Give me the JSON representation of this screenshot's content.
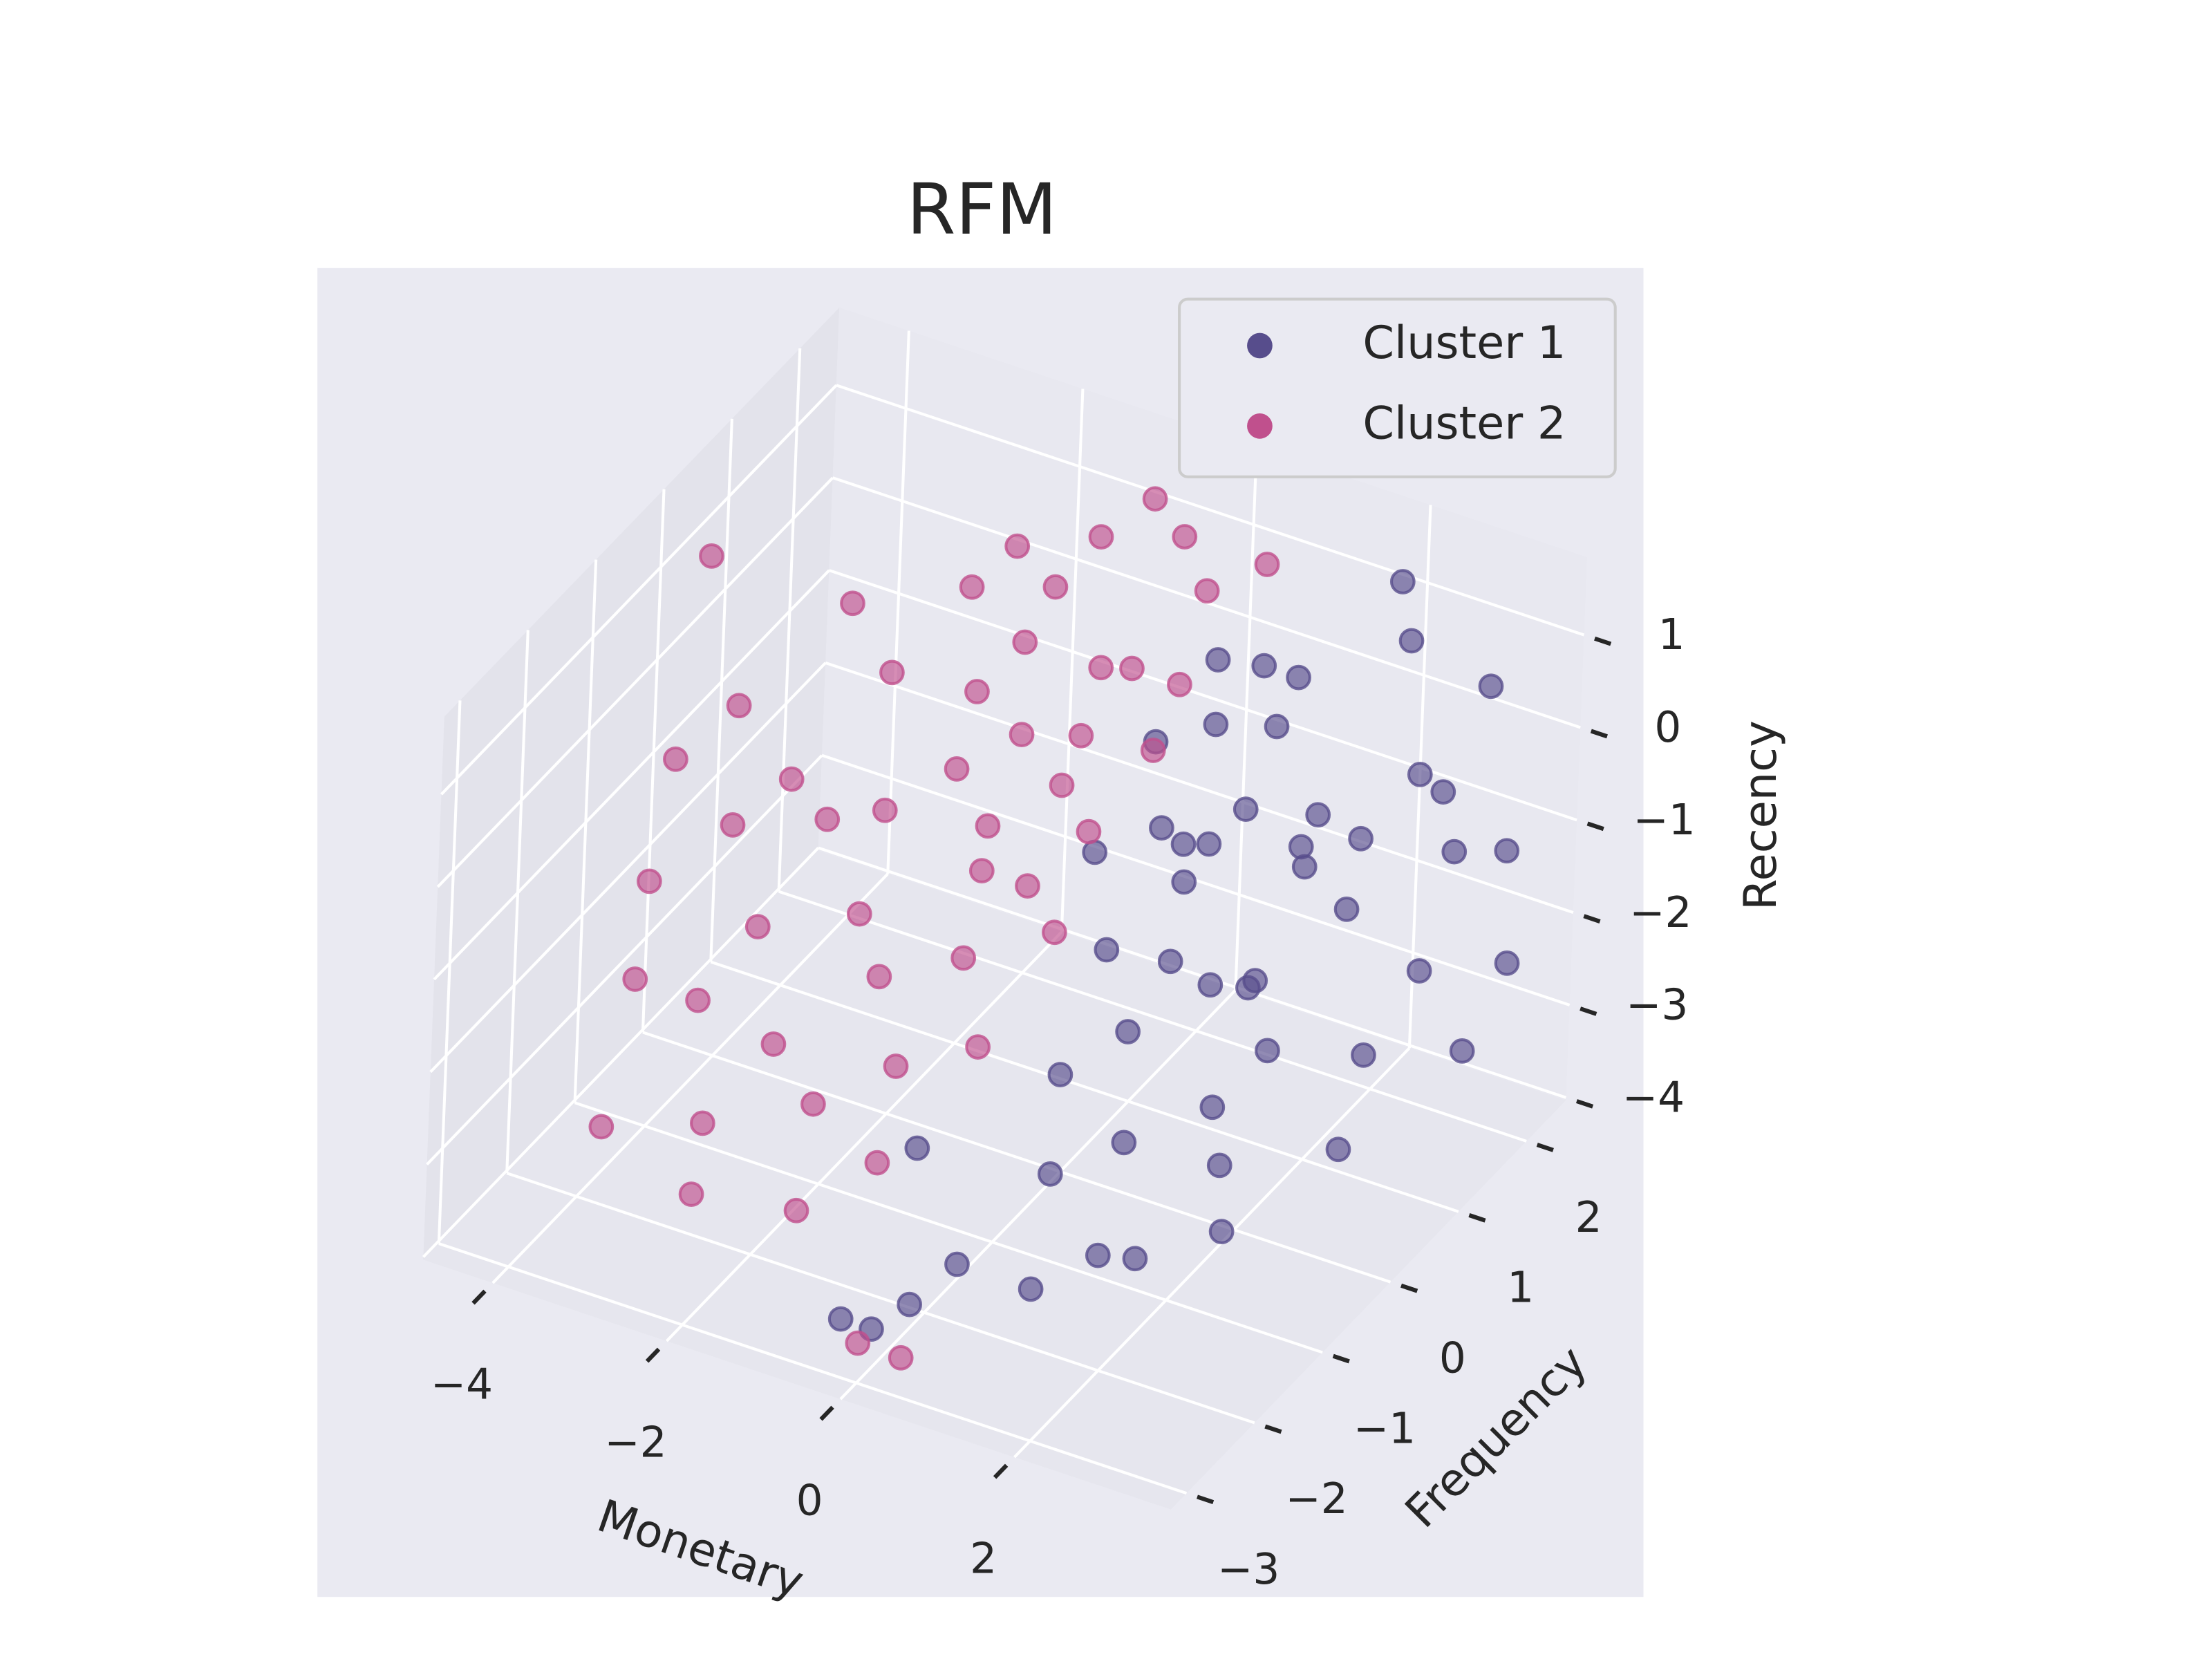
{
  "chart_data": {
    "type": "scatter3d",
    "title": "RFM",
    "xlabel": "Monetary",
    "ylabel": "Frequency",
    "zlabel": "Recency",
    "xlim": [
      -4.8,
      3.8
    ],
    "ylim": [
      -3.23,
      2.58
    ],
    "zlim": [
      -4.03,
      1.84
    ],
    "xticks": [
      {
        "value": -4,
        "label": "−4"
      },
      {
        "value": -2,
        "label": "−2"
      },
      0,
      2
    ],
    "yticks": [
      {
        "value": -3,
        "label": "−3"
      },
      {
        "value": -2,
        "label": "−2"
      },
      {
        "value": -1,
        "label": "−1"
      },
      0,
      1,
      2
    ],
    "zticks": [
      {
        "value": -4,
        "label": "−4"
      },
      {
        "value": -3,
        "label": "−3"
      },
      {
        "value": -2,
        "label": "−2"
      },
      {
        "value": -1,
        "label": "−1"
      },
      0,
      1
    ],
    "grid": true,
    "legend": "upper right",
    "series": [
      {
        "name": "Cluster 1",
        "color": "#574d8c",
        "x": [
          1.2,
          1.8,
          1.5,
          2.0,
          1.0,
          2.4,
          1.6,
          0.8,
          1.3,
          2.2,
          1.9,
          2.6,
          1.1,
          1.7,
          0.9,
          2.8,
          3.0,
          2.5,
          1.4,
          2.1,
          0.7,
          1.6,
          2.3,
          3.1,
          2.7,
          3.3,
          1.0,
          1.8,
          0.5,
          0.2,
          1.2,
          2.0,
          2.6,
          3.0,
          2.8,
          3.4,
          1.5,
          2.0,
          2.9,
          3.5,
          0.4,
          0.6,
          1.3,
          2.2,
          1.9,
          -0.3,
          0.0,
          -0.5,
          2.4,
          1.7
        ],
        "y": [
          0.5,
          0.2,
          -0.3,
          0.8,
          0.0,
          0.5,
          1.2,
          -0.5,
          -0.8,
          -0.2,
          1.0,
          0.9,
          0.6,
          -0.6,
          0.9,
          1.5,
          1.8,
          -0.5,
          0.3,
          1.4,
          -1.0,
          -1.2,
          0.0,
          1.2,
          2.0,
          2.2,
          -1.5,
          -1.8,
          -2.2,
          -2.5,
          -2.0,
          -1.5,
          -1.0,
          0.2,
          0.8,
          1.5,
          0.8,
          2.2,
          2.4,
          2.0,
          -0.2,
          0.4,
          1.3,
          2.1,
          -1.0,
          -1.8,
          -2.8,
          -2.6,
          -0.8,
          0.0
        ],
        "z": [
          0.8,
          0.3,
          -0.2,
          -0.5,
          0.0,
          0.2,
          0.9,
          -1.0,
          -1.5,
          -1.2,
          -0.9,
          -0.3,
          -0.6,
          0.5,
          1.1,
          0.0,
          -1.0,
          -0.8,
          -1.8,
          -1.6,
          -2.0,
          -2.3,
          -2.0,
          -1.8,
          -0.6,
          -1.2,
          -2.6,
          -3.0,
          -3.2,
          -3.5,
          -3.4,
          -3.2,
          -3.1,
          -3.0,
          -2.5,
          -2.8,
          1.3,
          1.3,
          0.3,
          -2.2,
          -0.3,
          0.5,
          0.2,
          0.8,
          -0.4,
          -2.5,
          -3.6,
          -3.8,
          -2.6,
          -2.8
        ]
      },
      {
        "name": "Cluster 2",
        "color": "#c0508d",
        "x": [
          -1.0,
          -0.5,
          -1.5,
          -2.0,
          -0.8,
          0.0,
          -0.3,
          -1.2,
          -2.5,
          -1.8,
          -0.6,
          0.3,
          -0.2,
          -1.0,
          -3.0,
          -3.2,
          -2.8,
          -3.5,
          -4.0,
          -4.2,
          -3.8,
          -2.2,
          -1.5,
          -0.8,
          0.2,
          0.5,
          -0.1,
          -2.6,
          -1.2,
          0.0,
          -4.6,
          -4.4,
          -2.0,
          -1.6,
          -0.4,
          -0.9,
          0.1,
          -3.3,
          -2.4,
          -0.6,
          -1.8,
          -0.7,
          0.4,
          -2.8,
          -3.6,
          -1.4,
          0.2,
          -0.2,
          -1.3,
          0.6
        ],
        "y": [
          0.5,
          1.0,
          0.2,
          -0.2,
          -0.3,
          0.8,
          0.2,
          1.2,
          0.5,
          -0.8,
          -0.8,
          1.5,
          1.8,
          1.6,
          -0.3,
          0.8,
          -1.0,
          -0.5,
          0.2,
          -0.8,
          -1.5,
          -1.5,
          -1.8,
          -1.5,
          -0.5,
          0.5,
          -1.2,
          -2.0,
          -2.4,
          -3.0,
          0.5,
          -0.2,
          1.0,
          0.6,
          0.6,
          -0.1,
          0.1,
          -1.2,
          -2.4,
          -2.0,
          1.4,
          2.0,
          1.0,
          0.0,
          -2.2,
          -1.0,
          -2.6,
          -0.4,
          0.9,
          2.0
        ],
        "z": [
          0.0,
          0.5,
          -0.3,
          -0.6,
          -0.8,
          0.8,
          -0.1,
          1.0,
          0.2,
          -1.2,
          -1.3,
          1.2,
          1.4,
          1.3,
          -0.5,
          0.5,
          -1.5,
          -1.0,
          -0.4,
          -1.6,
          -2.0,
          -2.2,
          -2.4,
          -2.0,
          -1.0,
          0.3,
          -1.8,
          -2.8,
          -3.0,
          -3.6,
          0.8,
          -0.8,
          0.9,
          0.2,
          0.1,
          -0.5,
          -0.4,
          -2.3,
          -3.2,
          -2.6,
          1.1,
          1.5,
          0.6,
          -1.1,
          -3.0,
          -1.6,
          -4.0,
          -0.7,
          0.6,
          1.2
        ]
      }
    ]
  }
}
